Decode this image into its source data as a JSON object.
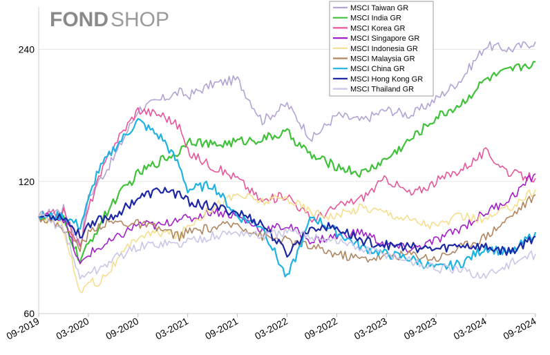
{
  "brand": {
    "fond": "FOND",
    "shop": "SHOP",
    "color": "#8a8a8a"
  },
  "chart_data": {
    "type": "line",
    "log_scale_y": true,
    "ylim": [
      60,
      300
    ],
    "y_ticks": [
      60,
      120,
      240
    ],
    "y_tick_labels": [
      "60",
      "120",
      "240"
    ],
    "x_ticks": [
      "09-2019",
      "03-2020",
      "09-2020",
      "03-2021",
      "09-2021",
      "03-2022",
      "09-2022",
      "03-2023",
      "09-2023",
      "03-2024",
      "09-2024"
    ],
    "grid": {
      "horizontal": true,
      "color": "#e6e6e6"
    },
    "legend": "top-center",
    "x_months": [
      0,
      3,
      5,
      6,
      7,
      9,
      12,
      15,
      17,
      18,
      21,
      24,
      27,
      30,
      33,
      36,
      39,
      42,
      45,
      48,
      51,
      54,
      57,
      60
    ],
    "series": [
      {
        "name": "MSCI Taiwan GR",
        "color": "#b3a2d3",
        "values": [
          100,
          104,
          86,
          110,
          118,
          135,
          175,
          185,
          192,
          188,
          200,
          205,
          165,
          180,
          150,
          170,
          165,
          175,
          170,
          185,
          205,
          245,
          240,
          250
        ]
      },
      {
        "name": "MSCI India GR",
        "color": "#3fc13a",
        "values": [
          100,
          98,
          79,
          86,
          93,
          108,
          125,
          135,
          140,
          150,
          145,
          148,
          150,
          155,
          137,
          130,
          125,
          135,
          150,
          168,
          180,
          205,
          215,
          225
        ]
      },
      {
        "name": "MSCI Korea GR",
        "color": "#e8559a",
        "values": [
          100,
          102,
          85,
          104,
          118,
          145,
          175,
          170,
          160,
          140,
          130,
          122,
          108,
          112,
          98,
          105,
          110,
          122,
          112,
          120,
          128,
          140,
          125,
          122
        ]
      },
      {
        "name": "MSCI Singapore GR",
        "color": "#a21ec9",
        "values": [
          100,
          99,
          77,
          82,
          84,
          88,
          96,
          95,
          100,
          98,
          103,
          100,
          93,
          95,
          88,
          90,
          92,
          86,
          84,
          88,
          94,
          102,
          110,
          125
        ]
      },
      {
        "name": "MSCI Indonesia GR",
        "color": "#f5de8d",
        "values": [
          100,
          95,
          66,
          72,
          70,
          77,
          90,
          92,
          90,
          95,
          105,
          112,
          108,
          110,
          102,
          100,
          105,
          102,
          98,
          95,
          100,
          98,
          105,
          115
        ]
      },
      {
        "name": "MSCI Malaysia GR",
        "color": "#b0855f",
        "values": [
          100,
          94,
          85,
          91,
          95,
          97,
          96,
          93,
          90,
          92,
          94,
          96,
          90,
          88,
          85,
          82,
          80,
          81,
          82,
          80,
          85,
          90,
          100,
          112
        ]
      },
      {
        "name": "MSCI China GR",
        "color": "#1eb3e0",
        "values": [
          100,
          100,
          95,
          108,
          125,
          142,
          165,
          150,
          130,
          115,
          118,
          100,
          95,
          72,
          100,
          92,
          85,
          82,
          80,
          76,
          78,
          85,
          82,
          92
        ]
      },
      {
        "name": "MSCI Hong Kong GR",
        "color": "#1c27a3",
        "values": [
          100,
          100,
          90,
          96,
          98,
          100,
          110,
          115,
          112,
          108,
          105,
          102,
          96,
          82,
          95,
          94,
          88,
          86,
          85,
          84,
          86,
          85,
          83,
          90
        ]
      },
      {
        "name": "MSCI Thailand GR",
        "color": "#c9c6e8",
        "values": [
          100,
          94,
          72,
          75,
          75,
          80,
          85,
          87,
          86,
          88,
          90,
          92,
          90,
          92,
          90,
          88,
          84,
          82,
          79,
          76,
          75,
          73,
          78,
          82
        ]
      }
    ]
  }
}
